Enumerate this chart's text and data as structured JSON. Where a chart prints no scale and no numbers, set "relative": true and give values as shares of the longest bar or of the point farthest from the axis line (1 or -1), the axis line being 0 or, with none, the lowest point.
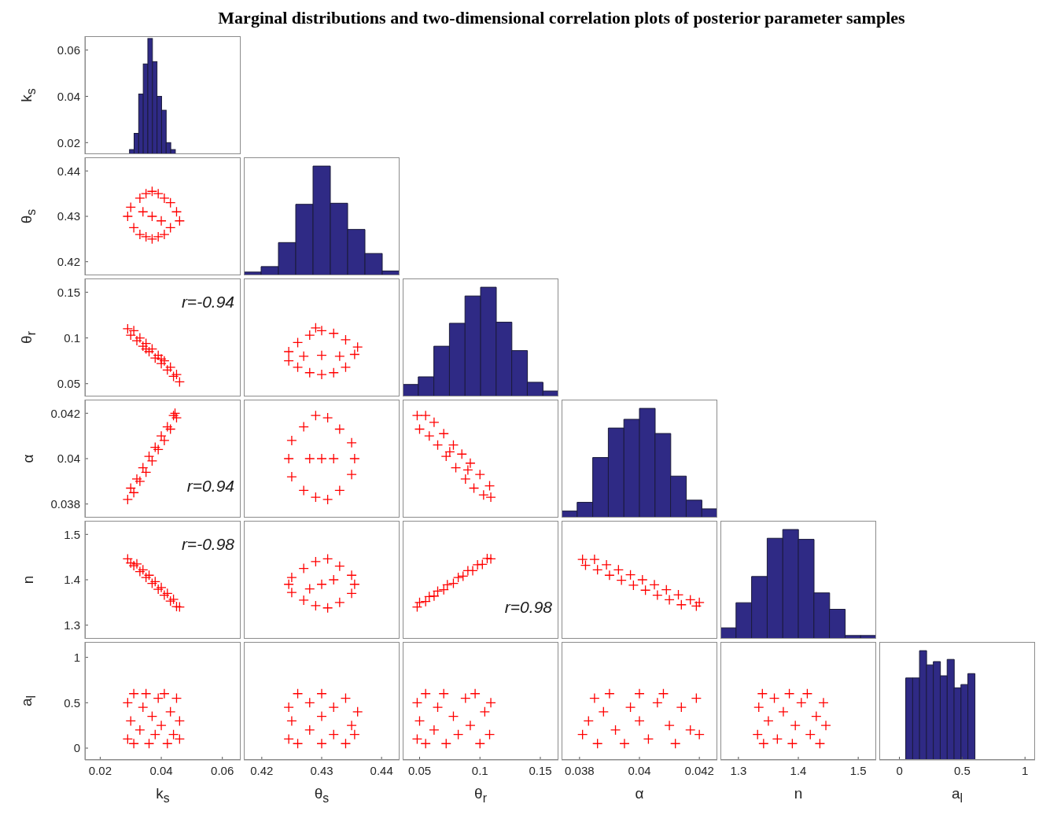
{
  "chart_data": [
    {
      "type": "histogram",
      "title": "Marginal distributions and two-dimensional correlation plots of posterior parameter samples",
      "ylabel": "k$_{s}$",
      "bins": [
        0.0296,
        0.0311,
        0.0326,
        0.0341,
        0.0356,
        0.0371,
        0.0386,
        0.0401,
        0.0416,
        0.0431,
        0.0446
      ],
      "values": [
        0.017,
        0.024,
        0.041,
        0.054,
        0.065,
        0.055,
        0.04,
        0.034,
        0.02,
        0.017
      ],
      "color": "#2f2a85",
      "xlim": [
        0.015,
        0.066
      ],
      "ylim": [
        0.015,
        0.066
      ],
      "yticks": [
        0.02,
        0.04,
        0.06
      ],
      "tick_labels": "y"
    },
    {
      "type": "scatter",
      "ylabel": "θ$_{s}$",
      "x": [
        0.029,
        0.03,
        0.031,
        0.033,
        0.033,
        0.035,
        0.035,
        0.037,
        0.037,
        0.037,
        0.039,
        0.039,
        0.041,
        0.041,
        0.043,
        0.043,
        0.045,
        0.046,
        0.034,
        0.04
      ],
      "values": [
        0.43,
        0.432,
        0.4275,
        0.434,
        0.426,
        0.435,
        0.4255,
        0.4355,
        0.425,
        0.43,
        0.435,
        0.4255,
        0.434,
        0.426,
        0.433,
        0.4275,
        0.431,
        0.429,
        0.431,
        0.429
      ],
      "color": "#ff0000",
      "marker": "cross",
      "xlim": [
        0.015,
        0.066
      ],
      "ylim": [
        0.417,
        0.443
      ],
      "yticks": [
        0.42,
        0.43,
        0.44
      ],
      "tick_labels": "y"
    },
    {
      "type": "bar",
      "categories": [
        null,
        null,
        null,
        null,
        null,
        null,
        null,
        null,
        null
      ],
      "values": [
        0.03,
        0.08,
        0.3,
        0.65,
        1,
        0.66,
        0.42,
        0.2,
        0.04
      ],
      "color": "#2f2a85",
      "relative": true,
      "tick_labels": false
    },
    {
      "type": "scatter",
      "ylabel": "θ$_{r}$",
      "annotations": [
        "r=-0.94"
      ],
      "x": [
        0.029,
        0.03,
        0.031,
        0.032,
        0.033,
        0.034,
        0.035,
        0.036,
        0.037,
        0.038,
        0.039,
        0.04,
        0.041,
        0.042,
        0.043,
        0.044,
        0.045,
        0.046,
        0.035,
        0.04
      ],
      "values": [
        0.11,
        0.103,
        0.108,
        0.097,
        0.1,
        0.091,
        0.094,
        0.085,
        0.088,
        0.078,
        0.081,
        0.072,
        0.075,
        0.065,
        0.068,
        0.058,
        0.06,
        0.052,
        0.088,
        0.077
      ],
      "color": "#ff0000",
      "marker": "cross",
      "xlim": [
        0.015,
        0.066
      ],
      "ylim": [
        0.036,
        0.165
      ],
      "yticks": [
        0.05,
        0.1,
        0.15
      ],
      "tick_labels": "y"
    },
    {
      "type": "scatter",
      "x": [
        0.4245,
        0.4245,
        0.426,
        0.426,
        0.428,
        0.428,
        0.43,
        0.43,
        0.43,
        0.432,
        0.432,
        0.434,
        0.434,
        0.4355,
        0.436,
        0.427,
        0.433,
        0.429
      ],
      "values": [
        0.075,
        0.085,
        0.068,
        0.095,
        0.062,
        0.103,
        0.06,
        0.108,
        0.081,
        0.062,
        0.105,
        0.068,
        0.098,
        0.082,
        0.09,
        0.08,
        0.08,
        0.111
      ],
      "color": "#ff0000",
      "marker": "cross",
      "xlim": [
        0.417,
        0.443
      ],
      "ylim": [
        0.036,
        0.165
      ],
      "tick_labels": false
    },
    {
      "type": "bar",
      "categories": [
        null,
        null,
        null,
        null,
        null,
        null,
        null,
        null,
        null,
        null
      ],
      "values": [
        0.11,
        0.18,
        0.46,
        0.67,
        0.92,
        1,
        0.68,
        0.42,
        0.13,
        0.05
      ],
      "color": "#2f2a85",
      "relative": true,
      "tick_labels": false
    },
    {
      "type": "scatter",
      "ylabel": "α",
      "annotations": [
        "r=0.94"
      ],
      "x": [
        0.029,
        0.03,
        0.031,
        0.032,
        0.033,
        0.034,
        0.035,
        0.036,
        0.037,
        0.038,
        0.039,
        0.04,
        0.041,
        0.042,
        0.043,
        0.044,
        0.045,
        0.0445
      ],
      "values": [
        0.0382,
        0.0387,
        0.0385,
        0.0391,
        0.039,
        0.0396,
        0.0394,
        0.0401,
        0.0399,
        0.0405,
        0.0404,
        0.041,
        0.0408,
        0.0414,
        0.0413,
        0.0419,
        0.0418,
        0.042
      ],
      "color": "#ff0000",
      "marker": "cross",
      "xlim": [
        0.015,
        0.066
      ],
      "ylim": [
        0.0374,
        0.0426
      ],
      "yticks": [
        0.038,
        0.04,
        0.042
      ],
      "tick_labels": "y"
    },
    {
      "type": "scatter",
      "x": [
        0.4245,
        0.425,
        0.425,
        0.427,
        0.427,
        0.429,
        0.429,
        0.43,
        0.431,
        0.431,
        0.433,
        0.433,
        0.435,
        0.435,
        0.4355,
        0.428,
        0.432
      ],
      "values": [
        0.04,
        0.0392,
        0.0408,
        0.0386,
        0.0414,
        0.0383,
        0.0419,
        0.04,
        0.0382,
        0.0418,
        0.0386,
        0.0413,
        0.0393,
        0.0407,
        0.04,
        0.04,
        0.04
      ],
      "color": "#ff0000",
      "marker": "cross",
      "xlim": [
        0.417,
        0.443
      ],
      "ylim": [
        0.0374,
        0.0426
      ],
      "tick_labels": false
    },
    {
      "type": "scatter",
      "x": [
        0.048,
        0.05,
        0.055,
        0.058,
        0.062,
        0.065,
        0.07,
        0.072,
        0.078,
        0.08,
        0.085,
        0.088,
        0.092,
        0.095,
        0.1,
        0.103,
        0.108,
        0.109,
        0.075,
        0.09
      ],
      "values": [
        0.0419,
        0.0413,
        0.0419,
        0.041,
        0.0416,
        0.0406,
        0.0411,
        0.0401,
        0.0406,
        0.0396,
        0.0402,
        0.0391,
        0.0398,
        0.0387,
        0.0393,
        0.0384,
        0.0388,
        0.0383,
        0.0403,
        0.0395
      ],
      "color": "#ff0000",
      "marker": "cross",
      "xlim": [
        0.036,
        0.165
      ],
      "ylim": [
        0.0374,
        0.0426
      ],
      "tick_labels": false
    },
    {
      "type": "bar",
      "categories": [
        null,
        null,
        null,
        null,
        null,
        null,
        null,
        null,
        null,
        null
      ],
      "values": [
        0.06,
        0.14,
        0.55,
        0.82,
        0.9,
        1,
        0.77,
        0.38,
        0.16,
        0.08
      ],
      "color": "#2f2a85",
      "relative": true,
      "tick_labels": false
    },
    {
      "type": "scatter",
      "ylabel": "n",
      "annotations": [
        "r=-0.98"
      ],
      "x": [
        0.029,
        0.03,
        0.031,
        0.032,
        0.033,
        0.034,
        0.035,
        0.036,
        0.037,
        0.038,
        0.039,
        0.04,
        0.041,
        0.042,
        0.043,
        0.044,
        0.045,
        0.046
      ],
      "values": [
        1.446,
        1.437,
        1.431,
        1.435,
        1.418,
        1.422,
        1.405,
        1.41,
        1.392,
        1.396,
        1.379,
        1.383,
        1.366,
        1.37,
        1.353,
        1.357,
        1.341,
        1.34
      ],
      "color": "#ff0000",
      "marker": "cross",
      "xlim": [
        0.015,
        0.066
      ],
      "ylim": [
        1.27,
        1.53
      ],
      "yticks": [
        1.3,
        1.4,
        1.5
      ],
      "tick_labels": "y"
    },
    {
      "type": "scatter",
      "x": [
        0.4245,
        0.425,
        0.425,
        0.427,
        0.427,
        0.429,
        0.429,
        0.431,
        0.431,
        0.433,
        0.433,
        0.435,
        0.435,
        0.4355,
        0.43,
        0.428,
        0.432
      ],
      "values": [
        1.39,
        1.372,
        1.405,
        1.355,
        1.425,
        1.343,
        1.44,
        1.338,
        1.446,
        1.35,
        1.43,
        1.37,
        1.41,
        1.39,
        1.39,
        1.38,
        1.4
      ],
      "color": "#ff0000",
      "marker": "cross",
      "xlim": [
        0.417,
        0.443
      ],
      "ylim": [
        1.27,
        1.53
      ],
      "tick_labels": false
    },
    {
      "type": "scatter",
      "annotations": [
        "r=0.98"
      ],
      "x": [
        0.048,
        0.05,
        0.055,
        0.058,
        0.062,
        0.065,
        0.07,
        0.073,
        0.078,
        0.082,
        0.086,
        0.09,
        0.094,
        0.098,
        0.102,
        0.106,
        0.109
      ],
      "values": [
        1.34,
        1.35,
        1.352,
        1.363,
        1.364,
        1.375,
        1.378,
        1.389,
        1.392,
        1.405,
        1.408,
        1.42,
        1.42,
        1.433,
        1.434,
        1.447,
        1.446
      ],
      "color": "#ff0000",
      "marker": "cross",
      "xlim": [
        0.036,
        0.165
      ],
      "ylim": [
        1.27,
        1.53
      ],
      "tick_labels": false
    },
    {
      "type": "scatter",
      "x": [
        0.0381,
        0.0382,
        0.0385,
        0.0386,
        0.0389,
        0.039,
        0.0393,
        0.0394,
        0.0397,
        0.0398,
        0.0401,
        0.0402,
        0.0405,
        0.0406,
        0.0409,
        0.041,
        0.0413,
        0.0414,
        0.0417,
        0.0419,
        0.042
      ],
      "values": [
        1.445,
        1.432,
        1.445,
        1.422,
        1.433,
        1.41,
        1.422,
        1.399,
        1.411,
        1.388,
        1.4,
        1.377,
        1.389,
        1.366,
        1.378,
        1.356,
        1.367,
        1.345,
        1.356,
        1.342,
        1.35
      ],
      "color": "#ff0000",
      "marker": "cross",
      "xlim": [
        0.0374,
        0.0426
      ],
      "ylim": [
        1.27,
        1.53
      ],
      "tick_labels": false
    },
    {
      "type": "bar",
      "categories": [
        null,
        null,
        null,
        null,
        null,
        null,
        null,
        null,
        null,
        null
      ],
      "values": [
        0.1,
        0.33,
        0.57,
        0.92,
        1,
        0.91,
        0.42,
        0.27,
        0.03,
        0.03
      ],
      "color": "#2f2a85",
      "relative": true,
      "tick_labels": false
    },
    {
      "type": "scatter",
      "xlabel": "k$_{s}$",
      "ylabel": "a$_{l}$",
      "x": [
        0.029,
        0.029,
        0.03,
        0.031,
        0.031,
        0.033,
        0.034,
        0.035,
        0.036,
        0.037,
        0.038,
        0.039,
        0.04,
        0.041,
        0.042,
        0.043,
        0.044,
        0.045,
        0.046,
        0.046
      ],
      "values": [
        0.1,
        0.5,
        0.3,
        0.6,
        0.05,
        0.2,
        0.45,
        0.6,
        0.05,
        0.35,
        0.15,
        0.55,
        0.25,
        0.6,
        0.05,
        0.4,
        0.15,
        0.55,
        0.3,
        0.1
      ],
      "color": "#ff0000",
      "marker": "cross",
      "xlim": [
        0.015,
        0.066
      ],
      "ylim": [
        -0.13,
        1.17
      ],
      "xticks": [
        0.02,
        0.04,
        0.06
      ],
      "yticks": [
        0,
        0.5,
        1
      ]
    },
    {
      "type": "scatter",
      "xlabel": "θ$_{s}$",
      "x": [
        0.4245,
        0.4245,
        0.425,
        0.426,
        0.426,
        0.428,
        0.428,
        0.43,
        0.43,
        0.43,
        0.432,
        0.432,
        0.434,
        0.434,
        0.435,
        0.4355,
        0.436
      ],
      "values": [
        0.1,
        0.45,
        0.3,
        0.6,
        0.05,
        0.2,
        0.5,
        0.05,
        0.35,
        0.6,
        0.15,
        0.45,
        0.05,
        0.55,
        0.25,
        0.15,
        0.4
      ],
      "color": "#ff0000",
      "marker": "cross",
      "xlim": [
        0.417,
        0.443
      ],
      "ylim": [
        -0.13,
        1.17
      ],
      "xticks": [
        0.42,
        0.43,
        0.44
      ],
      "tick_labels": "x"
    },
    {
      "type": "scatter",
      "xlabel": "θ$_{r}$",
      "x": [
        0.048,
        0.048,
        0.05,
        0.055,
        0.055,
        0.062,
        0.065,
        0.07,
        0.072,
        0.078,
        0.082,
        0.088,
        0.092,
        0.096,
        0.1,
        0.104,
        0.108,
        0.109
      ],
      "values": [
        0.1,
        0.5,
        0.3,
        0.6,
        0.05,
        0.2,
        0.45,
        0.6,
        0.05,
        0.35,
        0.15,
        0.55,
        0.25,
        0.6,
        0.05,
        0.4,
        0.15,
        0.5
      ],
      "color": "#ff0000",
      "marker": "cross",
      "xlim": [
        0.036,
        0.165
      ],
      "ylim": [
        -0.13,
        1.17
      ],
      "xticks": [
        0.05,
        0.1,
        0.15
      ],
      "tick_labels": "x"
    },
    {
      "type": "scatter",
      "xlabel": "α",
      "x": [
        0.0381,
        0.0383,
        0.0385,
        0.0386,
        0.0388,
        0.039,
        0.0392,
        0.0395,
        0.0397,
        0.04,
        0.04,
        0.0403,
        0.0406,
        0.0408,
        0.041,
        0.0412,
        0.0414,
        0.0417,
        0.0419,
        0.042
      ],
      "values": [
        0.15,
        0.3,
        0.55,
        0.05,
        0.4,
        0.6,
        0.2,
        0.05,
        0.45,
        0.6,
        0.3,
        0.1,
        0.5,
        0.6,
        0.25,
        0.05,
        0.45,
        0.2,
        0.55,
        0.15
      ],
      "color": "#ff0000",
      "marker": "cross",
      "xlim": [
        0.0374,
        0.0426
      ],
      "ylim": [
        -0.13,
        1.17
      ],
      "xticks": [
        0.038,
        0.04,
        0.042
      ],
      "tick_labels": "x"
    },
    {
      "type": "scatter",
      "xlabel": "n",
      "x": [
        1.332,
        1.334,
        1.34,
        1.342,
        1.35,
        1.36,
        1.365,
        1.375,
        1.385,
        1.39,
        1.395,
        1.405,
        1.415,
        1.42,
        1.43,
        1.436,
        1.442,
        1.446
      ],
      "values": [
        0.15,
        0.45,
        0.6,
        0.05,
        0.3,
        0.55,
        0.1,
        0.4,
        0.6,
        0.05,
        0.25,
        0.5,
        0.6,
        0.15,
        0.35,
        0.05,
        0.5,
        0.25
      ],
      "color": "#ff0000",
      "marker": "cross",
      "xlim": [
        1.27,
        1.53
      ],
      "ylim": [
        -0.13,
        1.17
      ],
      "xticks": [
        1.3,
        1.4,
        1.5
      ],
      "tick_labels": "x"
    },
    {
      "type": "bar",
      "xlabel": "a$_{l}$",
      "x": [
        0.0775,
        0.1325,
        0.1875,
        0.2425,
        0.2975,
        0.3525,
        0.4075,
        0.4625,
        0.5175,
        0.5725
      ],
      "values": [
        0.75,
        0.75,
        1,
        0.87,
        0.9,
        0.77,
        0.92,
        0.66,
        0.69,
        0.79
      ],
      "color": "#2f2a85",
      "relative": true,
      "xlim": [
        -0.16,
        1.08
      ],
      "xticks": [
        0,
        0.5,
        1
      ],
      "tick_labels": "x"
    }
  ]
}
